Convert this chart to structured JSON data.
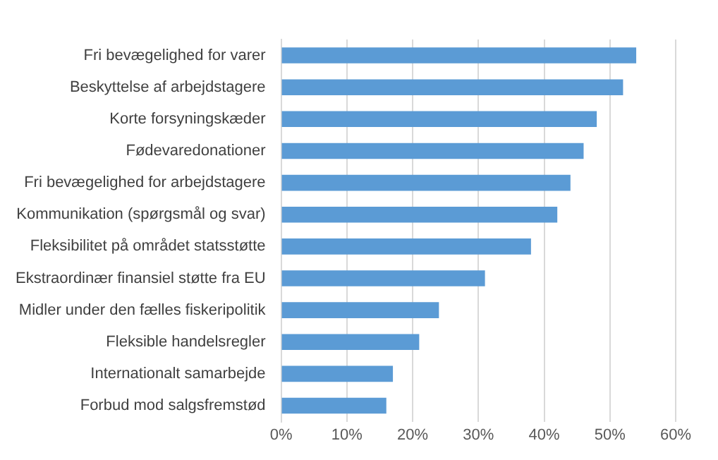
{
  "chart_data": {
    "type": "bar",
    "orientation": "horizontal",
    "categories": [
      "Fri bevægelighed for varer",
      "Beskyttelse af arbejdstagere",
      "Korte forsyningskæder",
      "Fødevaredonationer",
      "Fri bevægelighed for arbejdstagere",
      "Kommunikation (spørgsmål og svar)",
      "Fleksibilitet på området statsstøtte",
      "Ekstraordinær finansiel støtte fra EU",
      "Midler under den fælles fiskeripolitik",
      "Fleksible handelsregler",
      "Internationalt samarbejde",
      "Forbud mod salgsfremstød"
    ],
    "values": [
      54,
      52,
      48,
      46,
      44,
      42,
      38,
      31,
      24,
      21,
      17,
      16
    ],
    "color": "#5b9bd5",
    "xlim": [
      0,
      60
    ],
    "xticks": [
      {
        "value": 0,
        "label": "0%"
      },
      {
        "value": 10,
        "label": "10%"
      },
      {
        "value": 20,
        "label": "20%"
      },
      {
        "value": 30,
        "label": "30%"
      },
      {
        "value": 40,
        "label": "40%"
      },
      {
        "value": 50,
        "label": "50%"
      },
      {
        "value": 60,
        "label": "60%"
      }
    ],
    "grid": "x",
    "legend": false
  }
}
